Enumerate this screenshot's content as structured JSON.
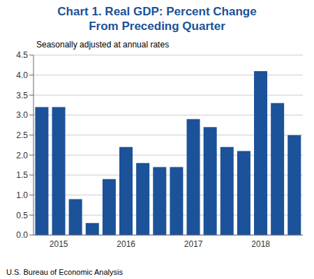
{
  "chart_data": {
    "type": "bar",
    "title": "Chart 1. Real GDP: Percent Change\nFrom Preceding Quarter",
    "subtitle": "Seasonally adjusted at annual rates",
    "footer": "U.S. Bureau of Economic Analysis",
    "categories": [
      null,
      "2015",
      null,
      null,
      null,
      "2016",
      null,
      null,
      null,
      "2017",
      null,
      null,
      null,
      "2018",
      null,
      null
    ],
    "values": [
      3.2,
      3.2,
      0.9,
      0.3,
      1.4,
      2.2,
      1.8,
      1.7,
      1.7,
      2.9,
      2.7,
      2.2,
      2.1,
      4.1,
      3.3,
      2.5
    ],
    "color": "#1b5299",
    "ylim": [
      0,
      4.5
    ],
    "yticks": [
      {
        "value": 0,
        "label": "0.0"
      },
      0.5,
      {
        "value": 1,
        "label": "1.0"
      },
      1.5,
      {
        "value": 2,
        "label": "2.0"
      },
      2.5,
      {
        "value": 3,
        "label": "3.0"
      },
      3.5,
      {
        "value": 4,
        "label": "4.0"
      },
      4.5
    ],
    "grid": true
  }
}
